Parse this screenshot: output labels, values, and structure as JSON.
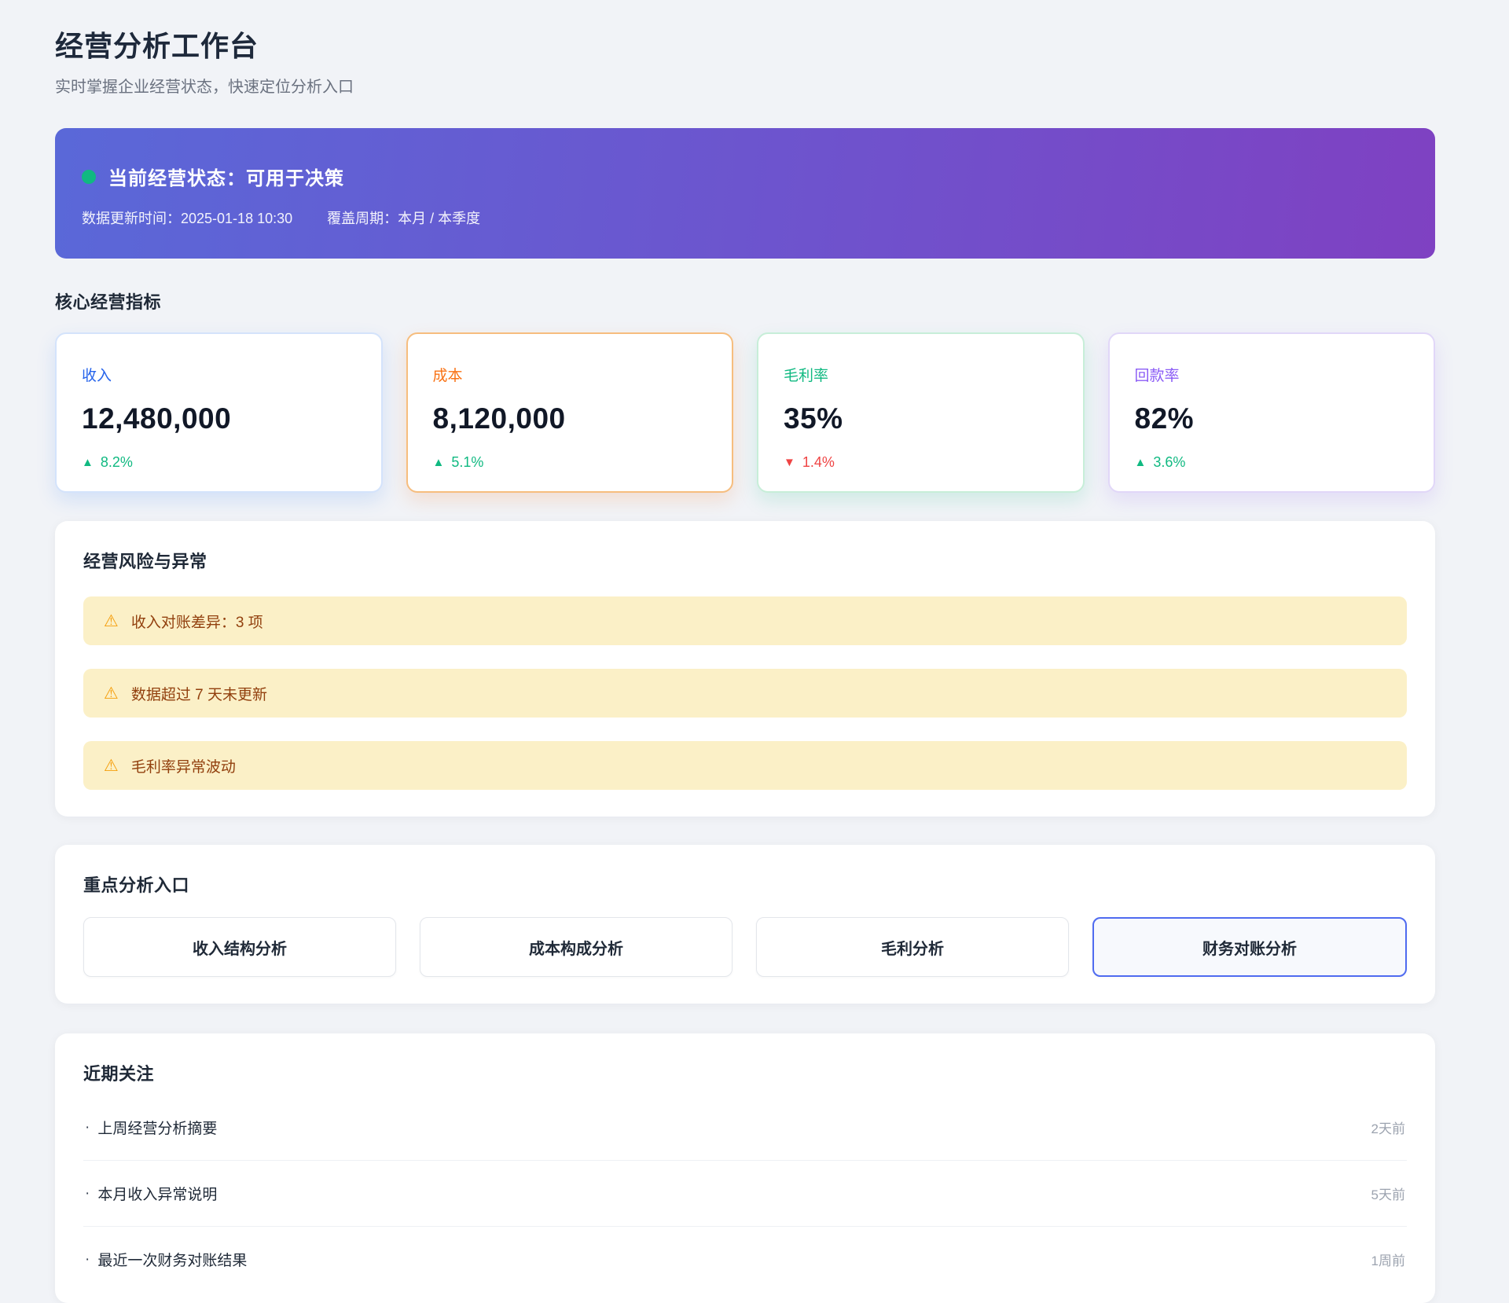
{
  "page": {
    "title": "经营分析工作台",
    "subtitle": "实时掌握企业经营状态，快速定位分析入口"
  },
  "status_banner": {
    "status_label": "当前经营状态：可用于决策",
    "updated_label": "数据更新时间：2025-01-18 10:30",
    "period_label": "覆盖周期：本月 / 本季度"
  },
  "kpi_section": {
    "title": "核心经营指标",
    "cards": [
      {
        "label": "收入",
        "value": "12,480,000",
        "trend": "8.2%",
        "direction": "up",
        "accent": "#2563eb"
      },
      {
        "label": "成本",
        "value": "8,120,000",
        "trend": "5.1%",
        "direction": "up",
        "accent": "#f97316"
      },
      {
        "label": "毛利率",
        "value": "35%",
        "trend": "1.4%",
        "direction": "down",
        "accent": "#10b981"
      },
      {
        "label": "回款率",
        "value": "82%",
        "trend": "3.6%",
        "direction": "up",
        "accent": "#8b5cf6"
      }
    ]
  },
  "risk_section": {
    "title": "经营风险与异常",
    "alerts": [
      {
        "text": "收入对账差异：3 项"
      },
      {
        "text": "数据超过 7 天未更新"
      },
      {
        "text": "毛利率异常波动"
      }
    ]
  },
  "entry_section": {
    "title": "重点分析入口",
    "buttons": [
      {
        "label": "收入结构分析",
        "active": false
      },
      {
        "label": "成本构成分析",
        "active": false
      },
      {
        "label": "毛利分析",
        "active": false
      },
      {
        "label": "财务对账分析",
        "active": true
      }
    ]
  },
  "recent_section": {
    "title": "近期关注",
    "items": [
      {
        "label": "上周经营分析摘要",
        "time": "2天前"
      },
      {
        "label": "本月收入异常说明",
        "time": "5天前"
      },
      {
        "label": "最近一次财务对账结果",
        "time": "1周前"
      }
    ]
  },
  "icons": {
    "status_dot": "●",
    "warning": "⚠",
    "trend_up": "▲",
    "trend_down": "▼",
    "bullet": "·"
  },
  "colors": {
    "page_background": "#f1f3f7",
    "banner_gradient_start": "#5a68d8",
    "banner_gradient_end": "#7f41c2",
    "status_dot": "#10b981",
    "trend_up": "#10b981",
    "trend_down": "#ef4444",
    "alert_background": "#fbf0c7",
    "alert_text": "#92400e",
    "warning_icon": "#f59e0b",
    "active_button_border": "#4f6bf0"
  }
}
